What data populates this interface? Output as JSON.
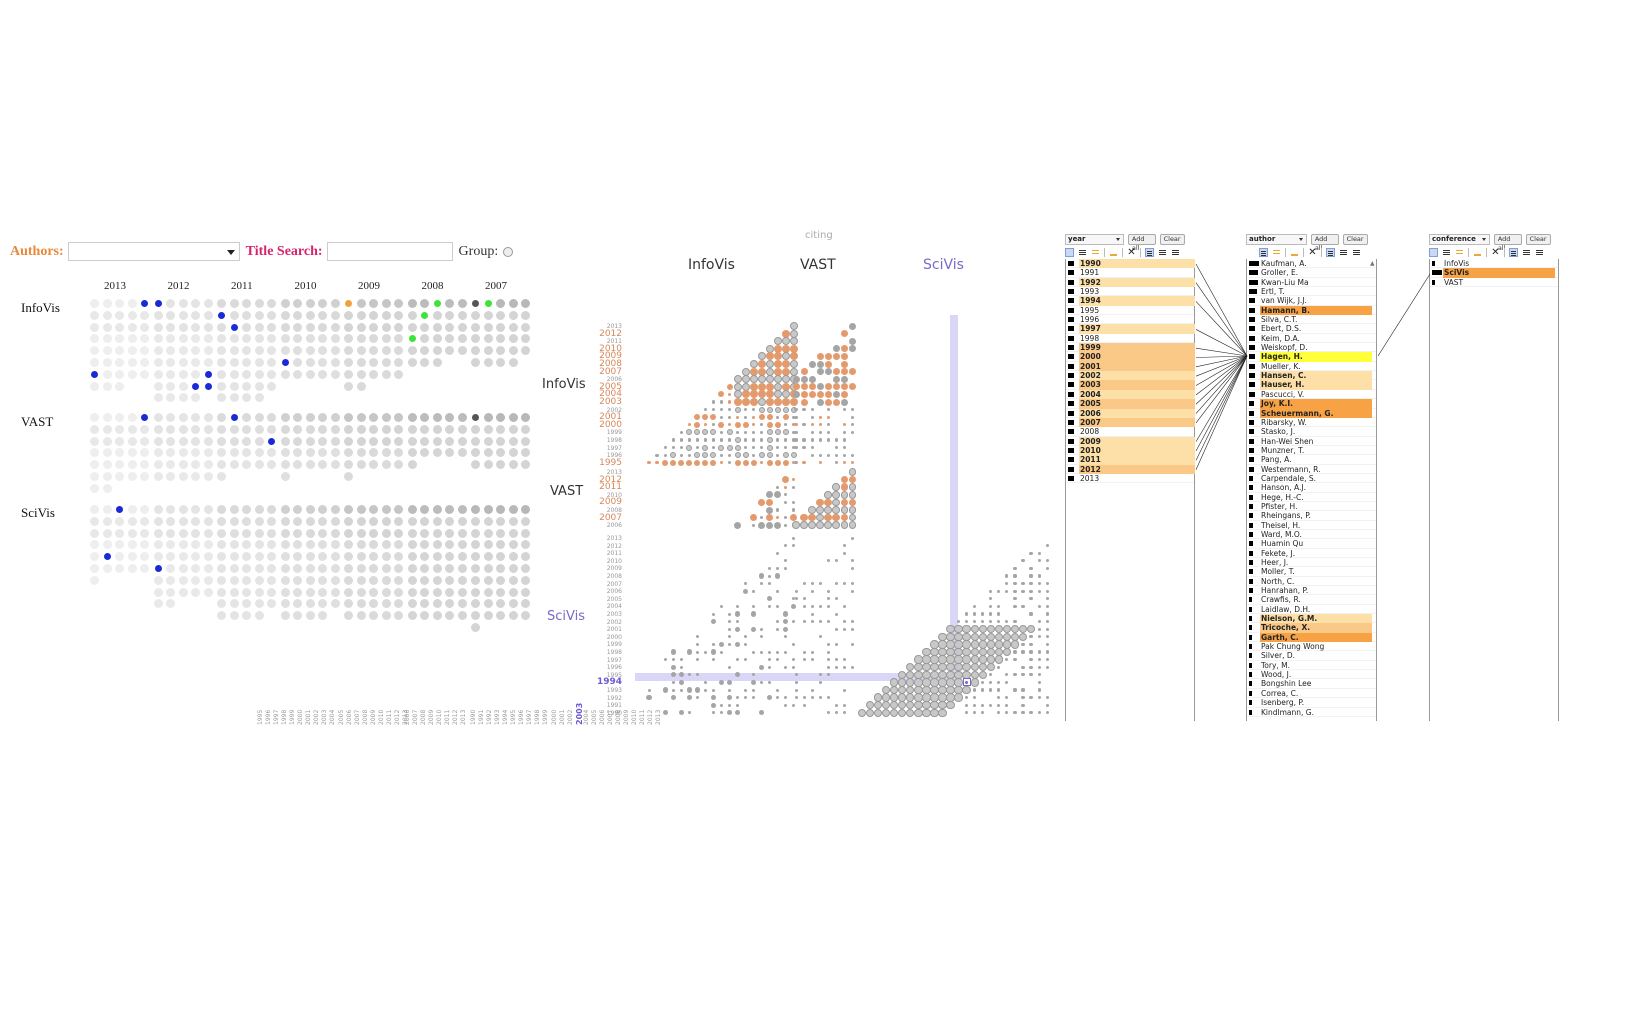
{
  "panel_dots": {
    "toolbar": {
      "authors_label": "Authors:",
      "authors_value": "",
      "title_search_label": "Title Search:",
      "title_search_value": "",
      "group_label": "Group:"
    },
    "years": [
      "2013",
      "2012",
      "2011",
      "2010",
      "2009",
      "2008",
      "2007"
    ],
    "conferences": [
      "InfoVis",
      "VAST",
      "SciVis"
    ],
    "colors": {
      "highlight_blue": "#1a2bd6",
      "highlight_green": "#3ee23a",
      "highlight_orange": "#f0a23a",
      "dark": "#555555"
    }
  },
  "panel_matrix": {
    "axis_label": "citing",
    "columns": [
      "InfoVis",
      "VAST",
      "SciVis"
    ],
    "rows": [
      "InfoVis",
      "VAST",
      "SciVis"
    ],
    "highlight_column_year": "2003",
    "highlight_row_year": "1994",
    "infovis_col_years": [
      "1995",
      "1996",
      "1997",
      "1998",
      "1999",
      "2000",
      "2001",
      "2002",
      "2003",
      "2004",
      "2005",
      "2006",
      "2007",
      "2008",
      "2009",
      "2010",
      "2011",
      "2012",
      "2013"
    ],
    "vast_col_years": [
      "2006",
      "2007",
      "2008",
      "2009",
      "2010",
      "2011",
      "2012",
      "2013"
    ],
    "scivis_col_years": [
      "1990",
      "1991",
      "1992",
      "1993",
      "1994",
      "1995",
      "1996",
      "1997",
      "1998",
      "1999",
      "2000",
      "2001",
      "2002",
      "2003",
      "2004",
      "2005",
      "2006",
      "2007",
      "2008",
      "2009",
      "2010",
      "2011",
      "2012",
      "2013"
    ],
    "infovis_row_years": [
      "2013",
      "2012",
      "2011",
      "2010",
      "2009",
      "2008",
      "2007",
      "2006",
      "2005",
      "2004",
      "2003",
      "2002",
      "2001",
      "2000",
      "1999",
      "1998",
      "1997",
      "1996",
      "1995"
    ],
    "infovis_row_highlighted": [
      "2012",
      "2010",
      "2009",
      "2008",
      "2007",
      "2005",
      "2004",
      "2003",
      "2001",
      "2000",
      "1995"
    ],
    "vast_row_years": [
      "2013",
      "2012",
      "2011",
      "2010",
      "2009",
      "2008",
      "2007",
      "2006"
    ],
    "vast_row_highlighted": [
      "2012",
      "2011",
      "2009",
      "2007"
    ],
    "scivis_row_years": [
      "2013",
      "2012",
      "2011",
      "2010",
      "2009",
      "2008",
      "2007",
      "2006",
      "2005",
      "2004",
      "2003",
      "2002",
      "2001",
      "2000",
      "1999",
      "1998",
      "1997",
      "1996",
      "1995",
      "1994",
      "1993",
      "1992",
      "1991",
      "1990"
    ],
    "colors": {
      "highlight": "#7b68c9",
      "cited": "#e39a6c",
      "normal": "#999999",
      "band": "#d9d6f7"
    }
  },
  "listboxes": {
    "year": {
      "field": "year",
      "add_all": "Add all",
      "clear": "Clear",
      "items": [
        {
          "label": "1990",
          "state": "l1"
        },
        {
          "label": "1991",
          "state": ""
        },
        {
          "label": "1992",
          "state": "l1"
        },
        {
          "label": "1993",
          "state": ""
        },
        {
          "label": "1994",
          "state": "l1"
        },
        {
          "label": "1995",
          "state": ""
        },
        {
          "label": "1996",
          "state": ""
        },
        {
          "label": "1997",
          "state": "l1"
        },
        {
          "label": "1998",
          "state": ""
        },
        {
          "label": "1999",
          "state": "l2"
        },
        {
          "label": "2000",
          "state": "l2"
        },
        {
          "label": "2001",
          "state": "l2"
        },
        {
          "label": "2002",
          "state": "l1"
        },
        {
          "label": "2003",
          "state": "l2"
        },
        {
          "label": "2004",
          "state": "l1"
        },
        {
          "label": "2005",
          "state": "l2"
        },
        {
          "label": "2006",
          "state": "l1"
        },
        {
          "label": "2007",
          "state": "l2"
        },
        {
          "label": "2008",
          "state": ""
        },
        {
          "label": "2009",
          "state": "l1"
        },
        {
          "label": "2010",
          "state": "l1"
        },
        {
          "label": "2011",
          "state": "l1"
        },
        {
          "label": "2012",
          "state": "l2"
        },
        {
          "label": "2013",
          "state": ""
        }
      ]
    },
    "author": {
      "field": "author",
      "add_all": "Add all",
      "clear": "Clear",
      "items": [
        {
          "label": "Kaufman, A.",
          "state": "",
          "w": 10
        },
        {
          "label": "Groller, E.",
          "state": "",
          "w": 9
        },
        {
          "label": "Kwan-Liu Ma",
          "state": "",
          "w": 9
        },
        {
          "label": "Ertl, T.",
          "state": "",
          "w": 8
        },
        {
          "label": "van Wijk, J.J.",
          "state": "",
          "w": 6
        },
        {
          "label": "Hamann, B.",
          "state": "l3",
          "w": 6
        },
        {
          "label": "Silva, C.T.",
          "state": "",
          "w": 6
        },
        {
          "label": "Ebert, D.S.",
          "state": "",
          "w": 6
        },
        {
          "label": "Keim, D.A.",
          "state": "",
          "w": 6
        },
        {
          "label": "Weiskopf, D.",
          "state": "",
          "w": 6
        },
        {
          "label": "Hagen, H.",
          "state": "yel",
          "w": 6
        },
        {
          "label": "Mueller, K.",
          "state": "",
          "w": 6
        },
        {
          "label": "Hansen, C.",
          "state": "l1",
          "w": 6
        },
        {
          "label": "Hauser, H.",
          "state": "l1",
          "w": 6
        },
        {
          "label": "Pascucci, V.",
          "state": "",
          "w": 6
        },
        {
          "label": "Joy, K.I.",
          "state": "l3",
          "w": 5
        },
        {
          "label": "Scheuermann, G.",
          "state": "l3",
          "w": 5
        },
        {
          "label": "Ribarsky, W.",
          "state": "",
          "w": 5
        },
        {
          "label": "Stasko, J.",
          "state": "",
          "w": 5
        },
        {
          "label": "Han-Wei Shen",
          "state": "",
          "w": 5
        },
        {
          "label": "Munzner, T.",
          "state": "",
          "w": 5
        },
        {
          "label": "Pang, A.",
          "state": "",
          "w": 5
        },
        {
          "label": "Westermann, R.",
          "state": "",
          "w": 5
        },
        {
          "label": "Carpendale, S.",
          "state": "",
          "w": 4
        },
        {
          "label": "Hanson, A.J.",
          "state": "",
          "w": 4
        },
        {
          "label": "Hege, H.-C.",
          "state": "",
          "w": 4
        },
        {
          "label": "Pfister, H.",
          "state": "",
          "w": 4
        },
        {
          "label": "Rheingans, P.",
          "state": "",
          "w": 4
        },
        {
          "label": "Theisel, H.",
          "state": "",
          "w": 4
        },
        {
          "label": "Ward, M.O.",
          "state": "",
          "w": 4
        },
        {
          "label": "Huamin Qu",
          "state": "",
          "w": 4
        },
        {
          "label": "Fekete, J.",
          "state": "",
          "w": 4
        },
        {
          "label": "Heer, J.",
          "state": "",
          "w": 4
        },
        {
          "label": "Moller, T.",
          "state": "",
          "w": 4
        },
        {
          "label": "North, C.",
          "state": "",
          "w": 4
        },
        {
          "label": "Hanrahan, P.",
          "state": "",
          "w": 4
        },
        {
          "label": "Crawfis, R.",
          "state": "",
          "w": 3
        },
        {
          "label": "Laidlaw, D.H.",
          "state": "",
          "w": 3
        },
        {
          "label": "Nielson, G.M.",
          "state": "l1",
          "w": 3
        },
        {
          "label": "Tricoche, X.",
          "state": "l2",
          "w": 3
        },
        {
          "label": "Garth, C.",
          "state": "l3",
          "w": 3
        },
        {
          "label": "Pak Chung Wong",
          "state": "",
          "w": 3
        },
        {
          "label": "Silver, D.",
          "state": "",
          "w": 3
        },
        {
          "label": "Tory, M.",
          "state": "",
          "w": 3
        },
        {
          "label": "Wood, J.",
          "state": "",
          "w": 3
        },
        {
          "label": "Bongshin Lee",
          "state": "",
          "w": 3
        },
        {
          "label": "Correa, C.",
          "state": "",
          "w": 3
        },
        {
          "label": "Isenberg, P.",
          "state": "",
          "w": 3
        },
        {
          "label": "Kindlmann, G.",
          "state": "",
          "w": 3
        }
      ]
    },
    "conference": {
      "field": "conference",
      "add_all": "Add all",
      "clear": "Clear",
      "items": [
        {
          "label": "InfoVis",
          "state": "",
          "w": 3
        },
        {
          "label": "SciVis",
          "state": "l3",
          "w": 10
        },
        {
          "label": "VAST",
          "state": "",
          "w": 3
        }
      ]
    }
  }
}
